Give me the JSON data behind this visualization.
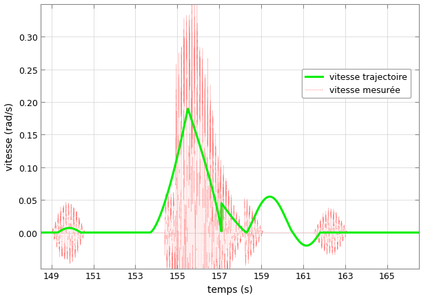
{
  "xlabel": "temps (s)",
  "ylabel": "vitesse (rad/s)",
  "xlim": [
    148.5,
    166.5
  ],
  "ylim": [
    -0.055,
    0.35
  ],
  "xticks": [
    149,
    151,
    153,
    155,
    157,
    159,
    161,
    163,
    165
  ],
  "yticks": [
    0.0,
    0.05,
    0.1,
    0.15,
    0.2,
    0.25,
    0.3
  ],
  "green_color": "#00EE00",
  "red_color": "#FF8080",
  "legend_labels": [
    "vitesse trajectoire",
    "vitesse mesurée"
  ],
  "background_color": "#ffffff",
  "grid_color": "#d0d0d0"
}
